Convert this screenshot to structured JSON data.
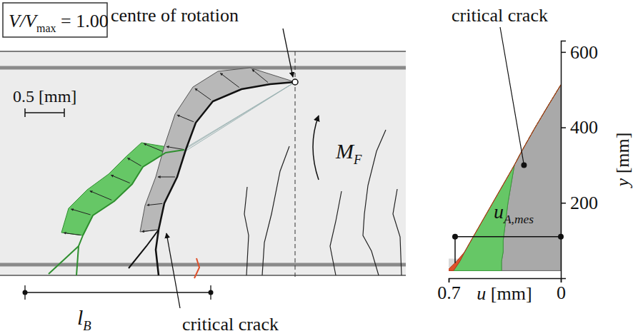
{
  "diagram": {
    "load_ratio": {
      "symbol": "V/V",
      "subscript": "max",
      "text": " = 1.00"
    },
    "centre_label": "centre of rotation",
    "scale_label": "0.5 [mm]",
    "moment_label": {
      "symbol": "M",
      "subscript": "F"
    },
    "length_label": {
      "symbol": "l",
      "subscript": "B"
    },
    "crack_label": "critical crack"
  },
  "chart_data": {
    "type": "area",
    "stacked": true,
    "x_label": {
      "symbol": "u",
      "text": " [mm]"
    },
    "y_label": {
      "symbol": "y",
      "text": " [mm]"
    },
    "y": [
      20,
      45,
      70,
      100,
      200,
      300,
      340,
      400,
      450,
      513
    ],
    "series": [
      {
        "name": "critical crack",
        "color": "#a9a9a9",
        "values": [
          0.37,
          0.37,
          0.36,
          0.36,
          0.33,
          0.29,
          0.24,
          0.16,
          0.09,
          0
        ],
        "label_point": {
          "u": 0.23,
          "y": 300
        }
      },
      {
        "color": "#66c766",
        "values": [
          0.3,
          0.26,
          0.24,
          0.2,
          0.095,
          0,
          0,
          0,
          0,
          0
        ]
      },
      {
        "color": "#e0502a",
        "values": [
          0.04,
          0.02,
          0,
          0,
          0,
          0,
          0,
          0,
          0,
          0
        ]
      }
    ],
    "xlim": [
      0.7,
      0
    ],
    "xticks": [
      0.7,
      0
    ],
    "ylim": [
      0,
      630
    ],
    "yticks": [
      200,
      400,
      600
    ],
    "band": [
      28,
      52
    ],
    "measure": {
      "label": {
        "symbol": "u",
        "subscript": "A,mes"
      },
      "y": 110,
      "u": 0.66,
      "base": 40
    }
  }
}
